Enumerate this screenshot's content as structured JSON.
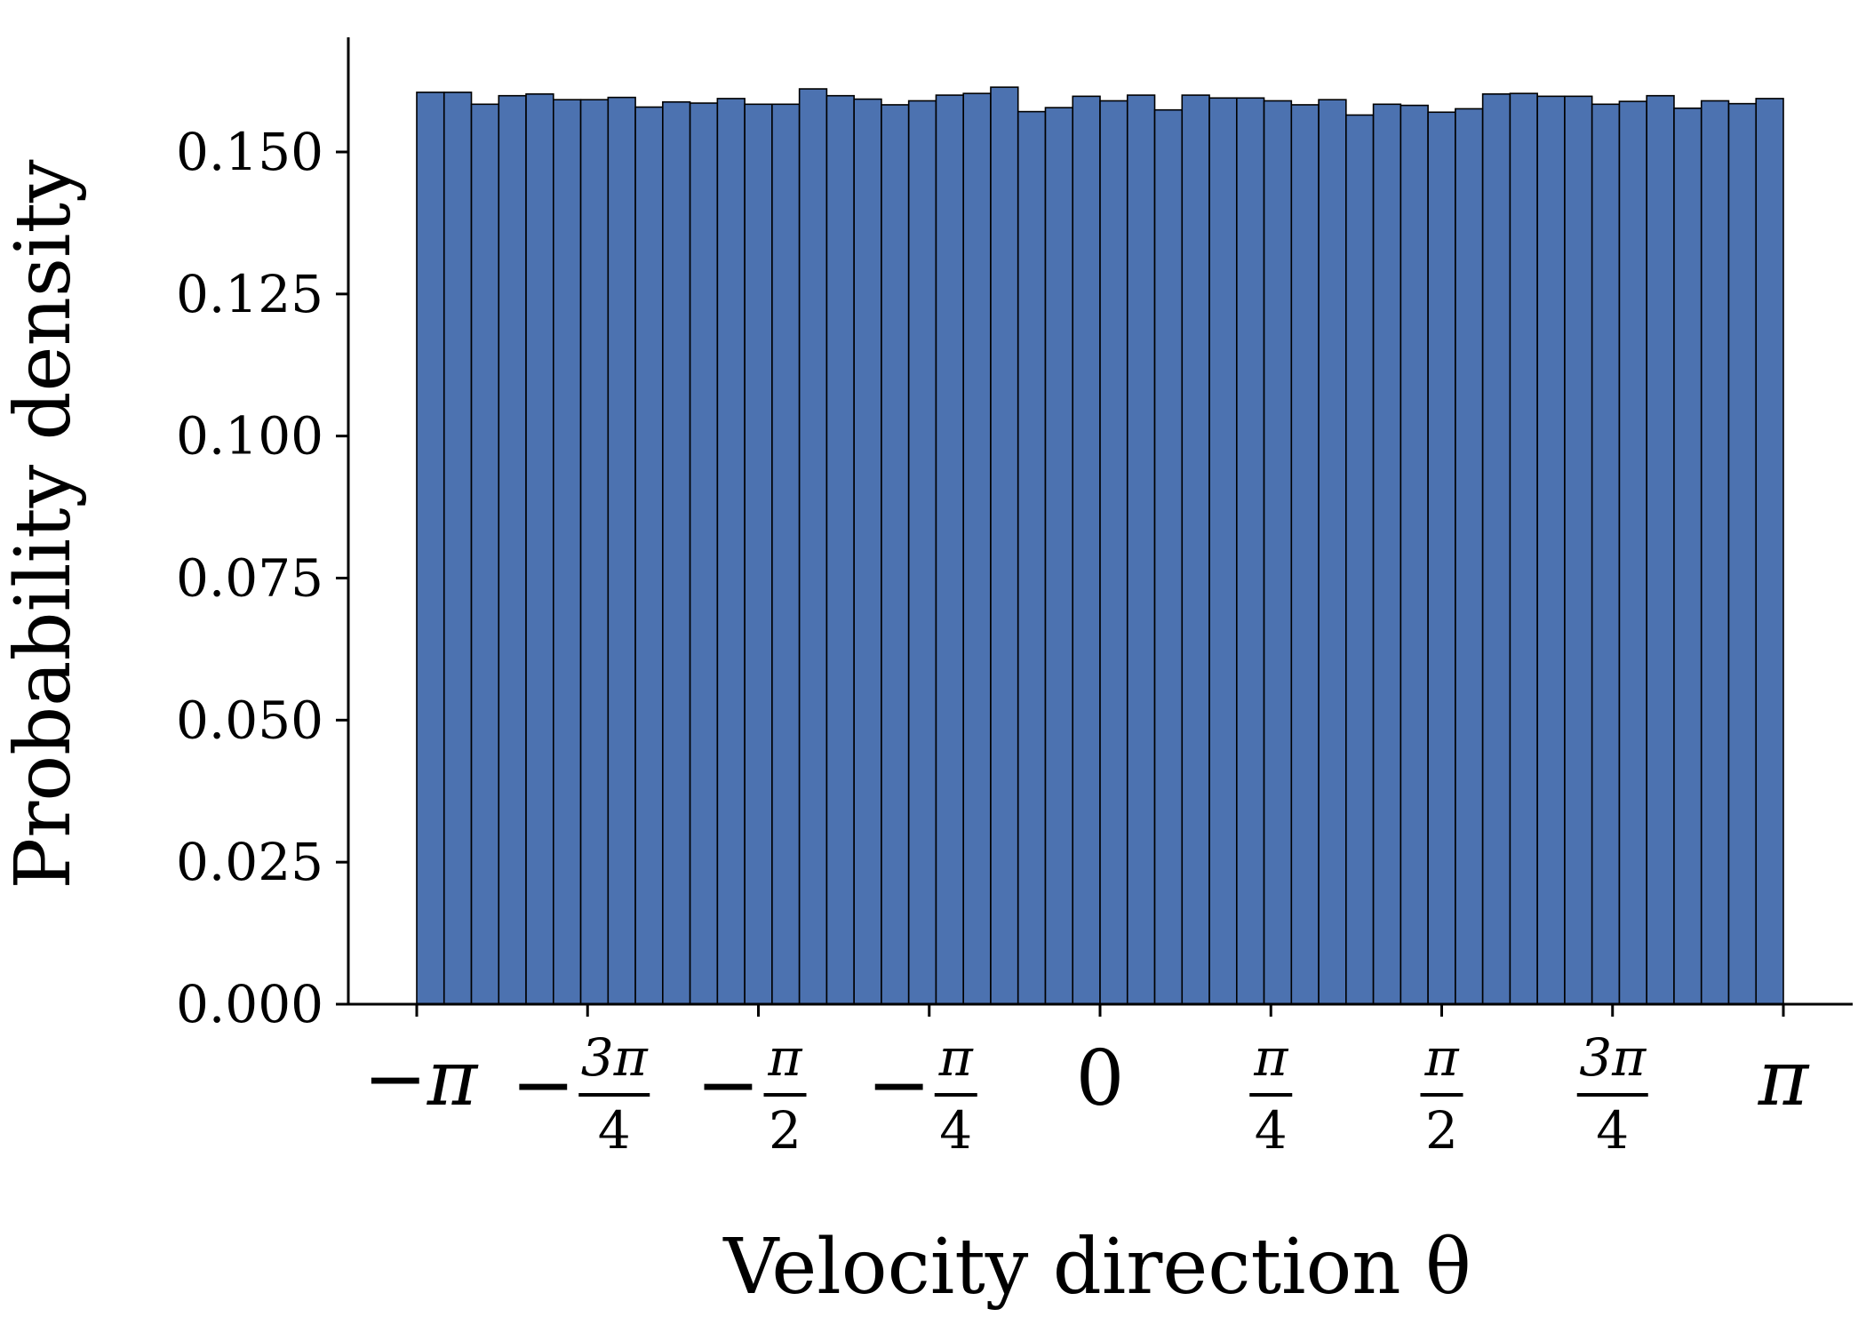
{
  "chart_data": {
    "type": "bar",
    "xlabel": "Velocity direction θ",
    "ylabel": "Probability density",
    "xlim": [
      -3.14159,
      3.14159
    ],
    "ylim": [
      0.0,
      0.17
    ],
    "bin_range": [
      -3.14159,
      3.14159
    ],
    "bar_color": "#4c72b0",
    "edge_color": "#000000",
    "grid": false,
    "y_ticks": [
      {
        "value": 0.0,
        "label": "0.000"
      },
      {
        "value": 0.025,
        "label": "0.025"
      },
      {
        "value": 0.05,
        "label": "0.050"
      },
      {
        "value": 0.075,
        "label": "0.075"
      },
      {
        "value": 0.1,
        "label": "0.100"
      },
      {
        "value": 0.125,
        "label": "0.125"
      },
      {
        "value": 0.15,
        "label": "0.150"
      }
    ],
    "x_ticks": [
      {
        "value": -3.14159,
        "sign": "−",
        "num": "π",
        "den": ""
      },
      {
        "value": -2.35619,
        "sign": "−",
        "num": "3π",
        "den": "4"
      },
      {
        "value": -1.5708,
        "sign": "−",
        "num": "π",
        "den": "2"
      },
      {
        "value": -0.7854,
        "sign": "−",
        "num": "π",
        "den": "4"
      },
      {
        "value": 0.0,
        "sign": "",
        "num": "0",
        "den": ""
      },
      {
        "value": 0.7854,
        "sign": "",
        "num": "π",
        "den": "4"
      },
      {
        "value": 1.5708,
        "sign": "",
        "num": "π",
        "den": "2"
      },
      {
        "value": 2.35619,
        "sign": "",
        "num": "3π",
        "den": "4"
      },
      {
        "value": 3.14159,
        "sign": "",
        "num": "π",
        "den": ""
      }
    ],
    "values": [
      0.1605,
      0.1605,
      0.1584,
      0.1599,
      0.1602,
      0.1592,
      0.1592,
      0.1596,
      0.1579,
      0.1588,
      0.1586,
      0.1594,
      0.1584,
      0.1584,
      0.1611,
      0.1599,
      0.1593,
      0.1583,
      0.159,
      0.16,
      0.1603,
      0.1614,
      0.1571,
      0.1578,
      0.1598,
      0.159,
      0.16,
      0.1574,
      0.16,
      0.1595,
      0.1595,
      0.159,
      0.1583,
      0.1592,
      0.1565,
      0.1584,
      0.1582,
      0.157,
      0.1576,
      0.1602,
      0.1603,
      0.1598,
      0.1598,
      0.1584,
      0.1589,
      0.1599,
      0.1577,
      0.159,
      0.1585,
      0.1594
    ]
  }
}
